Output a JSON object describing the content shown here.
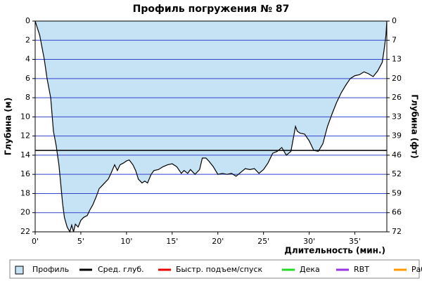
{
  "chart_data": {
    "type": "area",
    "title": "Профиль погружения № 87",
    "y_label": "Глубина (м)",
    "y2_label": "Глубина (фт)",
    "x_label": "Длительность (мин.)",
    "xlim": [
      0,
      38.5
    ],
    "xticks": [
      {
        "value": 0,
        "label": "0'"
      },
      {
        "value": 5,
        "label": "5'"
      },
      {
        "value": 10,
        "label": "10'"
      },
      {
        "value": 15,
        "label": "15'"
      },
      {
        "value": 20,
        "label": "20'"
      },
      {
        "value": 25,
        "label": "25'"
      },
      {
        "value": 30,
        "label": "30'"
      },
      {
        "value": 35,
        "label": "35'"
      }
    ],
    "ylim": [
      0,
      22
    ],
    "yticks": [
      0,
      2,
      4,
      6,
      8,
      10,
      12,
      14,
      16,
      18,
      20,
      22
    ],
    "y2lim": [
      0,
      72.18
    ],
    "y2ticks": [
      {
        "value": 0,
        "label": "0"
      },
      {
        "value": 6.56,
        "label": "7"
      },
      {
        "value": 13.12,
        "label": "13"
      },
      {
        "value": 19.69,
        "label": "20"
      },
      {
        "value": 26.25,
        "label": "26"
      },
      {
        "value": 32.81,
        "label": "33"
      },
      {
        "value": 39.37,
        "label": "39"
      },
      {
        "value": 45.93,
        "label": "46"
      },
      {
        "value": 52.49,
        "label": "52"
      },
      {
        "value": 59.06,
        "label": "59"
      },
      {
        "value": 65.62,
        "label": "66"
      },
      {
        "value": 72.18,
        "label": "72"
      }
    ],
    "grid": true,
    "grid_color": "#3344cc",
    "x": [
      0,
      0.5,
      1,
      1.3,
      1.7,
      2,
      2.3,
      2.6,
      2.8,
      3,
      3.2,
      3.5,
      3.8,
      4,
      4.2,
      4.4,
      4.7,
      5,
      5.3,
      5.7,
      6,
      6.3,
      6.7,
      7,
      7.3,
      7.7,
      8,
      8.3,
      8.7,
      9,
      9.3,
      9.7,
      10,
      10.3,
      10.7,
      11,
      11.3,
      11.7,
      12,
      12.3,
      12.7,
      13,
      13.5,
      14,
      14.5,
      15,
      15.5,
      16,
      16.3,
      16.7,
      17,
      17.5,
      18,
      18.3,
      18.7,
      19,
      19.5,
      20,
      20.5,
      21,
      21.5,
      22,
      22.5,
      23,
      23.5,
      24,
      24.5,
      25,
      25.5,
      26,
      26.5,
      27,
      27.5,
      28,
      28.5,
      28.7,
      29,
      29.5,
      30,
      30.5,
      31,
      31.5,
      32,
      32.5,
      33,
      33.5,
      34,
      34.5,
      35,
      35.5,
      36,
      36.5,
      37,
      37.5,
      38,
      38.2,
      38.4,
      38.5
    ],
    "series": [
      {
        "name": "Профиль",
        "color": "#c6e2f5",
        "values": [
          0,
          1.5,
          4,
          6,
          8,
          11.5,
          13,
          15,
          17,
          19,
          20.5,
          21.5,
          22,
          21.3,
          22,
          21.2,
          21.5,
          20.8,
          20.5,
          20.3,
          19.7,
          19.2,
          18.3,
          17.5,
          17.2,
          16.8,
          16.5,
          15.9,
          15,
          15.6,
          15,
          14.8,
          14.6,
          14.5,
          15,
          15.6,
          16.5,
          16.9,
          16.7,
          16.9,
          16,
          15.6,
          15.5,
          15.2,
          15,
          14.9,
          15.2,
          15.9,
          15.6,
          15.9,
          15.5,
          16,
          15.5,
          14.3,
          14.3,
          14.6,
          15.2,
          16,
          15.9,
          16,
          15.9,
          16.2,
          15.8,
          15.4,
          15.5,
          15.4,
          15.9,
          15.5,
          14.8,
          13.8,
          13.6,
          13.2,
          14,
          13.6,
          11,
          11.5,
          11.7,
          11.8,
          12.5,
          13.5,
          13.6,
          12.8,
          11,
          9.7,
          8.5,
          7.5,
          6.7,
          6,
          5.7,
          5.6,
          5.3,
          5.5,
          5.8,
          5.2,
          4.3,
          3,
          1.5,
          0
        ]
      }
    ],
    "average": {
      "name": "Сред. глуб.",
      "color": "#000000",
      "value": 13.5
    },
    "legend_extra": [
      {
        "name": "Быстр. подъем/спуск",
        "color": "#ee0000"
      },
      {
        "name": "Дека",
        "color": "#22dd22"
      },
      {
        "name": "RBT",
        "color": "#9933dd"
      },
      {
        "name": "Раб.",
        "color": "#ff9900"
      }
    ]
  }
}
